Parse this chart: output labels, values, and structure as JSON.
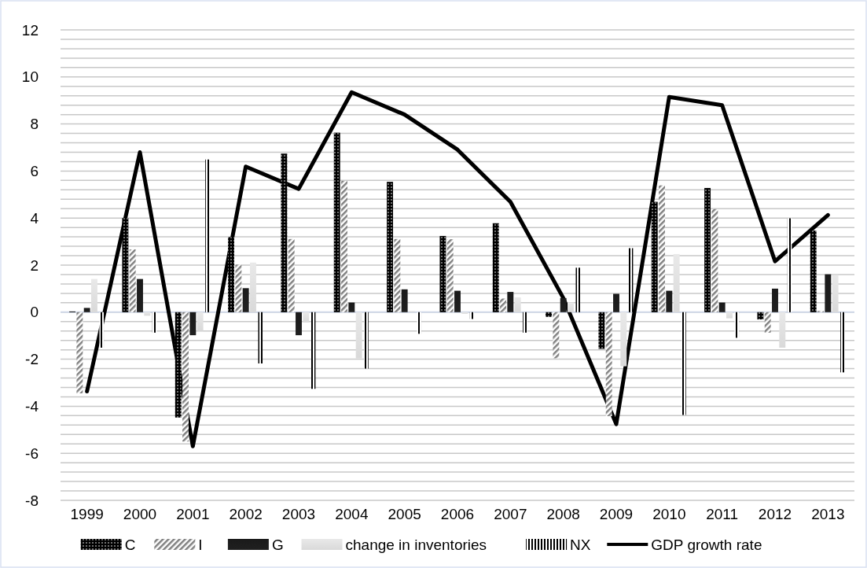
{
  "chart_data": {
    "type": "bar",
    "categories": [
      "1999",
      "2000",
      "2001",
      "2002",
      "2003",
      "2004",
      "2005",
      "2006",
      "2007",
      "2008",
      "2009",
      "2010",
      "2011",
      "2012",
      "2013"
    ],
    "series": [
      {
        "name": "C",
        "color": "#000000",
        "values": [
          0.03,
          4.0,
          -4.48,
          3.19,
          6.74,
          7.63,
          5.54,
          3.24,
          3.78,
          -0.2,
          -1.56,
          4.69,
          5.28,
          -0.31,
          3.47
        ]
      },
      {
        "name": "I",
        "color": "#808080",
        "values": [
          -3.45,
          2.67,
          -5.5,
          2.02,
          3.11,
          5.58,
          3.11,
          3.1,
          0.58,
          -1.96,
          -4.42,
          5.39,
          4.38,
          -0.87,
          0.05
        ]
      },
      {
        "name": "G",
        "color": "#1a1a1a",
        "values": [
          0.18,
          1.41,
          -0.98,
          1.02,
          -0.98,
          0.41,
          0.97,
          0.91,
          0.86,
          0.6,
          0.78,
          0.91,
          0.41,
          1.0,
          1.61
        ]
      },
      {
        "name": "change in inventories",
        "color": "#d9d9d9",
        "values": [
          1.41,
          -0.15,
          -0.8,
          2.11,
          -0.44,
          -1.96,
          0.05,
          -0.07,
          0.63,
          0.41,
          -2.3,
          2.47,
          -0.26,
          -1.51,
          1.58
        ]
      },
      {
        "name": "NX",
        "color": "#000000",
        "values": [
          -1.51,
          -0.87,
          6.49,
          -2.18,
          -3.26,
          -2.4,
          -0.92,
          -0.29,
          -0.87,
          1.89,
          2.72,
          -4.37,
          -1.09,
          3.99,
          -2.56
        ]
      },
      {
        "name": "GDP growth rate",
        "type": "line",
        "color": "#000000",
        "values": [
          -3.37,
          6.8,
          -5.7,
          6.19,
          5.24,
          9.35,
          8.4,
          6.91,
          4.69,
          0.6,
          -4.76,
          9.15,
          8.8,
          2.16,
          4.13
        ]
      }
    ],
    "ylim": [
      -8,
      12
    ],
    "yticks": [
      -8,
      {
        "value": -7.6,
        "label": null
      },
      {
        "value": -7.2,
        "label": null
      },
      {
        "value": -6.8,
        "label": null
      },
      {
        "value": -6.4,
        "label": null
      },
      -6,
      {
        "value": -5.6,
        "label": null
      },
      {
        "value": -5.2,
        "label": null
      },
      {
        "value": -4.8,
        "label": null
      },
      {
        "value": -4.4,
        "label": null
      },
      -4,
      {
        "value": -3.6,
        "label": null
      },
      {
        "value": -3.2,
        "label": null
      },
      {
        "value": -2.8,
        "label": null
      },
      {
        "value": -2.4,
        "label": null
      },
      -2,
      {
        "value": -1.6,
        "label": null
      },
      {
        "value": -1.2,
        "label": null
      },
      {
        "value": -0.8,
        "label": null
      },
      {
        "value": -0.4,
        "label": null
      },
      0,
      {
        "value": 0.4,
        "label": null
      },
      {
        "value": 0.8,
        "label": null
      },
      {
        "value": 1.2,
        "label": null
      },
      {
        "value": 1.6,
        "label": null
      },
      2,
      {
        "value": 2.4,
        "label": null
      },
      {
        "value": 2.8,
        "label": null
      },
      {
        "value": 3.2,
        "label": null
      },
      {
        "value": 3.6,
        "label": null
      },
      4,
      {
        "value": 4.4,
        "label": null
      },
      {
        "value": 4.8,
        "label": null
      },
      {
        "value": 5.2,
        "label": null
      },
      {
        "value": 5.6,
        "label": null
      },
      6,
      {
        "value": 6.4,
        "label": null
      },
      {
        "value": 6.8,
        "label": null
      },
      {
        "value": 7.2,
        "label": null
      },
      {
        "value": 7.6,
        "label": null
      },
      8,
      {
        "value": 8.4,
        "label": null
      },
      {
        "value": 8.8,
        "label": null
      },
      {
        "value": 9.2,
        "label": null
      },
      {
        "value": 9.6,
        "label": null
      },
      10,
      {
        "value": 10.4,
        "label": null
      },
      {
        "value": 10.8,
        "label": null
      },
      {
        "value": 11.2,
        "label": null
      },
      {
        "value": 11.6,
        "label": null
      },
      12
    ],
    "grid": "y",
    "legend": "bottom",
    "marker": "none",
    "line_style": "solid"
  }
}
